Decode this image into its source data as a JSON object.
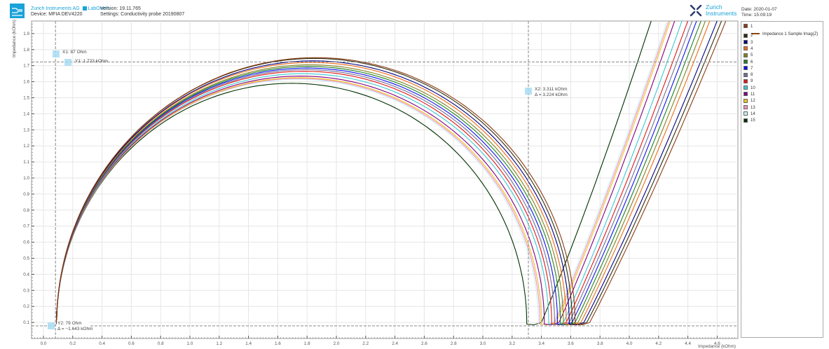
{
  "header": {
    "company": "Zurich Instruments AG",
    "product": "LabOne®",
    "device": "Device:  MFIA DEV4220",
    "version": "Version: 19.11.765",
    "settings": "Settings: Conductivity probe 20190807",
    "brand_line1": "Zurich",
    "brand_line2": "Instruments",
    "date": "Date: 2020-01-07",
    "time": "Time: 15:09:19",
    "accent_color": "#1aa3d9"
  },
  "cursors": {
    "x1": "X1: 87 Ohm",
    "y1": "Y1: 1.723 kOhm",
    "x2": "X2: 3.311 kOhm",
    "x_delta": "Δ = 3.224 kOhm",
    "y2": "Y2: 79 Ohm",
    "y_delta": "Δ = −1.643 kOhm"
  },
  "legend": {
    "line_label": "Impedance 1 Sample Imag(Z)",
    "items": [
      {
        "label": "1",
        "color": "#8b3a10"
      },
      {
        "label": "2",
        "color": "#2e2e10"
      },
      {
        "label": "3",
        "color": "#000080"
      },
      {
        "label": "4",
        "color": "#ee6b1a"
      },
      {
        "label": "5",
        "color": "#808020"
      },
      {
        "label": "6",
        "color": "#1e8020"
      },
      {
        "label": "7",
        "color": "#1010ee"
      },
      {
        "label": "8",
        "color": "#707098"
      },
      {
        "label": "9",
        "color": "#e01818"
      },
      {
        "label": "10",
        "color": "#3cc8d0"
      },
      {
        "label": "11",
        "color": "#800080"
      },
      {
        "label": "12",
        "color": "#f0c020"
      },
      {
        "label": "13",
        "color": "#f090c0"
      },
      {
        "label": "14",
        "color": "#c8f0f0"
      },
      {
        "label": "15",
        "color": "#003000"
      }
    ]
  },
  "chart_data": {
    "type": "line",
    "title": "",
    "xlabel": "Impedance (kOhm)",
    "ylabel": "Impedance (kOhm)",
    "xlim": [
      -0.08,
      4.73
    ],
    "ylim": [
      0.0,
      1.98
    ],
    "xticks": [
      "0.0",
      "0.2",
      "0.4",
      "0.6",
      "0.8",
      "1.0",
      "1.2",
      "1.4",
      "1.6",
      "1.8",
      "2.0",
      "2.2",
      "2.4",
      "2.6",
      "2.8",
      "3.0",
      "3.2",
      "3.4",
      "3.6",
      "3.8",
      "4.0",
      "4.2",
      "4.4",
      "4.6"
    ],
    "yticks": [
      "0.1",
      "0.2",
      "0.3",
      "0.4",
      "0.5",
      "0.6",
      "0.7",
      "0.8",
      "0.9",
      "1.0",
      "1.1",
      "1.2",
      "1.3",
      "1.4",
      "1.5",
      "1.6",
      "1.7",
      "1.8",
      "1.9"
    ],
    "grid": true,
    "legend_position": "right",
    "cursor_lines": {
      "x1": 0.087,
      "x2": 3.311,
      "y1": 1.723,
      "y2": 0.079
    },
    "series": [
      {
        "name": "1",
        "start": [
          0.09,
          0.17
        ],
        "peak_y": 1.72,
        "min_x": 3.63,
        "top_x": 4.66
      },
      {
        "name": "2",
        "start": [
          0.09,
          0.17
        ],
        "peak_y": 1.715,
        "min_x": 3.61,
        "top_x": 4.63
      },
      {
        "name": "3",
        "start": [
          0.09,
          0.17
        ],
        "peak_y": 1.7,
        "min_x": 3.59,
        "top_x": 4.6
      },
      {
        "name": "4",
        "start": [
          0.09,
          0.17
        ],
        "peak_y": 1.69,
        "min_x": 3.57,
        "top_x": 4.55
      },
      {
        "name": "5",
        "start": [
          0.09,
          0.17
        ],
        "peak_y": 1.675,
        "min_x": 3.55,
        "top_x": 4.52
      },
      {
        "name": "6",
        "start": [
          0.09,
          0.17
        ],
        "peak_y": 1.665,
        "min_x": 3.53,
        "top_x": 4.49
      },
      {
        "name": "7",
        "start": [
          0.09,
          0.17
        ],
        "peak_y": 1.655,
        "min_x": 3.51,
        "top_x": 4.46
      },
      {
        "name": "8",
        "start": [
          0.09,
          0.17
        ],
        "peak_y": 1.645,
        "min_x": 3.49,
        "top_x": 4.43
      },
      {
        "name": "9",
        "start": [
          0.09,
          0.17
        ],
        "peak_y": 1.635,
        "min_x": 3.47,
        "top_x": 4.4
      },
      {
        "name": "10",
        "start": [
          0.09,
          0.17
        ],
        "peak_y": 1.62,
        "min_x": 3.45,
        "top_x": 4.36
      },
      {
        "name": "11",
        "start": [
          0.09,
          0.17
        ],
        "peak_y": 1.605,
        "min_x": 3.42,
        "top_x": 4.31
      },
      {
        "name": "12",
        "start": [
          0.09,
          0.17
        ],
        "peak_y": 1.595,
        "min_x": 3.4,
        "top_x": 4.28
      },
      {
        "name": "13",
        "start": [
          0.09,
          0.17
        ],
        "peak_y": 1.59,
        "min_x": 3.39,
        "top_x": 4.27
      },
      {
        "name": "14",
        "start": [
          0.09,
          0.17
        ],
        "peak_y": 1.585,
        "min_x": 3.38,
        "top_x": 4.26
      },
      {
        "name": "15",
        "start": [
          0.09,
          0.17
        ],
        "peak_y": 1.56,
        "min_x": 3.3,
        "top_x": 4.15
      }
    ]
  }
}
